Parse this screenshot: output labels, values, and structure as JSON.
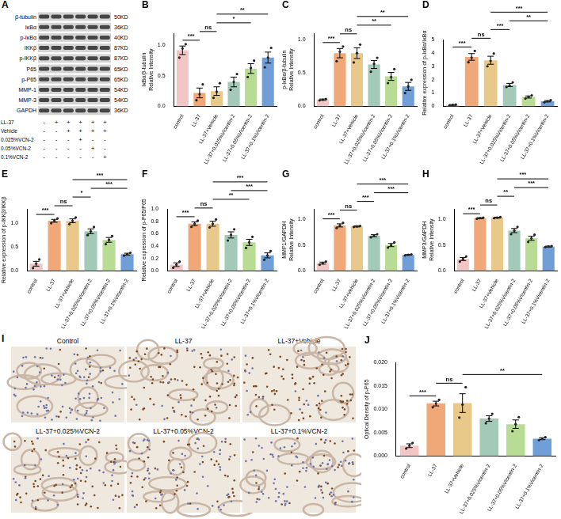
{
  "chart_data": [
    {
      "type": "bar",
      "panel": "B",
      "y_label": "IκBα/β-tubulin\nRelative Intensity",
      "categories": [
        "control",
        "LL-37",
        "LL-37+Vehicle",
        "LL-37+0.025%Vicentin-2",
        "LL-37+0.05%Vicentin-2",
        "LL-37+0.1%Vicentin-2"
      ],
      "values": [
        0.92,
        0.22,
        0.25,
        0.4,
        0.62,
        0.8
      ],
      "errors": [
        0.07,
        0.08,
        0.07,
        0.08,
        0.08,
        0.09
      ],
      "points": [
        [
          0.8,
          0.95,
          1.02
        ],
        [
          0.1,
          0.2,
          0.36
        ],
        [
          0.14,
          0.24,
          0.38
        ],
        [
          0.27,
          0.4,
          0.53
        ],
        [
          0.48,
          0.63,
          0.75
        ],
        [
          0.64,
          0.8,
          0.96
        ]
      ],
      "colors": [
        "#f3c6c6",
        "#f0a878",
        "#e8c98a",
        "#a3c9b8",
        "#b9dc94",
        "#6f9fd6"
      ],
      "ylim": [
        0,
        1.2
      ],
      "yticks": [
        {
          "value": 0,
          "label": "0.0"
        },
        {
          "value": 0.5,
          "label": "0.5"
        },
        {
          "value": 1,
          "label": "1.0"
        }
      ],
      "grid": false,
      "comparisons": [
        {
          "from": "control",
          "to": "LL-37",
          "label": "***"
        },
        {
          "from": "LL-37",
          "to": "LL-37+Vehicle",
          "label": "ns"
        },
        {
          "from": "LL-37+Vehicle",
          "to": "LL-37+0.05%Vicentin-2",
          "label": "*"
        },
        {
          "from": "LL-37+Vehicle",
          "to": "LL-37+0.1%Vicentin-2",
          "label": "**"
        }
      ]
    },
    {
      "type": "bar",
      "panel": "C",
      "y_label": "p-IκBα/β-tubulin\nRelative Intensity",
      "categories": [
        "control",
        "LL-37",
        "LL-37+Vehicle",
        "LL-37+0.025%Vicentin-2",
        "LL-37+0.05%Vicentin-2",
        "LL-37+0.1%Vicentin-2"
      ],
      "values": [
        0.1,
        0.8,
        0.8,
        0.63,
        0.45,
        0.3
      ],
      "errors": [
        0.01,
        0.07,
        0.08,
        0.06,
        0.06,
        0.06
      ],
      "points": [
        [
          0.09,
          0.1,
          0.11
        ],
        [
          0.68,
          0.82,
          0.9
        ],
        [
          0.66,
          0.8,
          0.93
        ],
        [
          0.52,
          0.64,
          0.73
        ],
        [
          0.35,
          0.44,
          0.56
        ],
        [
          0.2,
          0.3,
          0.4
        ]
      ],
      "colors": [
        "#f3c6c6",
        "#f0a878",
        "#e8c98a",
        "#a3c9b8",
        "#b9dc94",
        "#6f9fd6"
      ],
      "ylim": [
        0,
        1.1
      ],
      "yticks": [
        {
          "value": 0,
          "label": "0.0"
        },
        {
          "value": 0.5,
          "label": "0.5"
        },
        {
          "value": 1,
          "label": "1.0"
        }
      ],
      "grid": false,
      "comparisons": [
        {
          "from": "control",
          "to": "LL-37",
          "label": "***"
        },
        {
          "from": "LL-37",
          "to": "LL-37+Vehicle",
          "label": "ns"
        },
        {
          "from": "LL-37+Vehicle",
          "to": "LL-37+0.05%Vicentin-2",
          "label": "**"
        },
        {
          "from": "LL-37+Vehicle",
          "to": "LL-37+0.1%Vicentin-2",
          "label": "**"
        }
      ]
    },
    {
      "type": "bar",
      "panel": "D",
      "y_label": "Relative expression of p-IκBα/IκBα",
      "categories": [
        "control",
        "LL-37",
        "LL-37+Vehicle",
        "LL-37+0.025%Vicentin-2",
        "LL-37+0.05%Vicentin-2",
        "LL-37+0.1%Vicentin-2"
      ],
      "values": [
        0.1,
        3.7,
        3.45,
        1.6,
        0.7,
        0.38
      ],
      "errors": [
        0.03,
        0.25,
        0.3,
        0.12,
        0.08,
        0.05
      ],
      "points": [
        [
          0.07,
          0.1,
          0.13
        ],
        [
          3.3,
          3.65,
          4.15
        ],
        [
          3.0,
          3.4,
          3.95
        ],
        [
          1.45,
          1.55,
          1.8
        ],
        [
          0.58,
          0.7,
          0.82
        ],
        [
          0.3,
          0.38,
          0.46
        ]
      ],
      "colors": [
        "#f3c6c6",
        "#f0a878",
        "#e8c98a",
        "#a3c9b8",
        "#b9dc94",
        "#6f9fd6"
      ],
      "ylim": [
        0,
        5
      ],
      "yticks": [
        0,
        1,
        2,
        3,
        4,
        5
      ],
      "grid": false,
      "comparisons": [
        {
          "from": "control",
          "to": "LL-37",
          "label": "***"
        },
        {
          "from": "LL-37",
          "to": "LL-37+Vehicle",
          "label": "ns"
        },
        {
          "from": "LL-37+Vehicle",
          "to": "LL-37+0.025%Vicentin-2",
          "label": "***"
        },
        {
          "from": "LL-37+0.025%Vicentin-2",
          "to": "LL-37+0.1%Vicentin-2",
          "label": "**"
        },
        {
          "from": "LL-37+Vehicle",
          "to": "LL-37+0.1%Vicentin-2",
          "label": "***"
        }
      ]
    },
    {
      "type": "bar",
      "panel": "E",
      "y_label": "Relative expression of p-IKKβ/IKKβ",
      "categories": [
        "control",
        "LL-37",
        "LL-37+Vehicle",
        "LL-37+0.025%Vicentin-2",
        "LL-37+0.05%Vicentin-2",
        "LL-37+0.1%Vicentin-2"
      ],
      "values": [
        0.15,
        1.05,
        1.05,
        0.83,
        0.65,
        0.35
      ],
      "errors": [
        0.05,
        0.03,
        0.04,
        0.05,
        0.05,
        0.02
      ],
      "points": [
        [
          0.06,
          0.15,
          0.24
        ],
        [
          1.0,
          1.05,
          1.1
        ],
        [
          0.98,
          1.05,
          1.12
        ],
        [
          0.75,
          0.83,
          0.92
        ],
        [
          0.56,
          0.65,
          0.73
        ],
        [
          0.32,
          0.35,
          0.38
        ]
      ],
      "colors": [
        "#f3c6c6",
        "#f0a878",
        "#e8c98a",
        "#a3c9b8",
        "#b9dc94",
        "#6f9fd6"
      ],
      "ylim": [
        0,
        1.3
      ],
      "yticks": [
        {
          "value": 0,
          "label": "0.0"
        },
        {
          "value": 0.5,
          "label": "0.5"
        },
        {
          "value": 1,
          "label": "1.0"
        }
      ],
      "grid": false,
      "comparisons": [
        {
          "from": "control",
          "to": "LL-37",
          "label": "***"
        },
        {
          "from": "LL-37",
          "to": "LL-37+Vehicle",
          "label": "ns"
        },
        {
          "from": "LL-37+Vehicle",
          "to": "LL-37+0.025%Vicentin-2",
          "label": "*"
        },
        {
          "from": "LL-37+0.025%Vicentin-2",
          "to": "LL-37+0.1%Vicentin-2",
          "label": "***"
        },
        {
          "from": "LL-37+Vehicle",
          "to": "LL-37+0.1%Vicentin-2",
          "label": "***"
        }
      ]
    },
    {
      "type": "bar",
      "panel": "F",
      "y_label": "Relative expression of p-P65/P65",
      "categories": [
        "control",
        "LL-37",
        "LL-37+Vehicle",
        "LL-37+0.025%Vicentin-2",
        "LL-37+0.05%Vicentin-2",
        "LL-37+0.1%Vicentin-2"
      ],
      "values": [
        0.1,
        0.76,
        0.76,
        0.58,
        0.46,
        0.25
      ],
      "errors": [
        0.03,
        0.03,
        0.04,
        0.05,
        0.05,
        0.04
      ],
      "points": [
        [
          0.05,
          0.1,
          0.15
        ],
        [
          0.71,
          0.76,
          0.81
        ],
        [
          0.7,
          0.76,
          0.83
        ],
        [
          0.49,
          0.58,
          0.67
        ],
        [
          0.37,
          0.46,
          0.55
        ],
        [
          0.18,
          0.25,
          0.32
        ]
      ],
      "colors": [
        "#f3c6c6",
        "#f0a878",
        "#e8c98a",
        "#a3c9b8",
        "#b9dc94",
        "#6f9fd6"
      ],
      "ylim": [
        0,
        1.0
      ],
      "yticks": [
        {
          "value": 0,
          "label": "0.0"
        },
        {
          "value": 0.2,
          "label": "0.2"
        },
        {
          "value": 0.4,
          "label": "0.4"
        },
        {
          "value": 0.6,
          "label": "0.6"
        },
        {
          "value": 0.8,
          "label": "0.8"
        },
        {
          "value": 1,
          "label": "1.0"
        }
      ],
      "grid": false,
      "comparisons": [
        {
          "from": "control",
          "to": "LL-37",
          "label": "***"
        },
        {
          "from": "LL-37",
          "to": "LL-37+Vehicle",
          "label": "ns"
        },
        {
          "from": "LL-37+Vehicle",
          "to": "LL-37+0.05%Vicentin-2",
          "label": "**"
        },
        {
          "from": "LL-37+0.025%Vicentin-2",
          "to": "LL-37+0.1%Vicentin-2",
          "label": "***"
        },
        {
          "from": "LL-37+Vehicle",
          "to": "LL-37+0.1%Vicentin-2",
          "label": "***"
        }
      ]
    },
    {
      "type": "bar",
      "panel": "G",
      "y_label": "MMP1/GAPDH\nRelative Intensity",
      "categories": [
        "control",
        "LL-37",
        "LL-37+Vehicle",
        "LL-37+0.025%Vicentin-2",
        "LL-37+0.05%Vicentin-2",
        "LL-37+0.1%Vicentin-2"
      ],
      "values": [
        0.15,
        0.88,
        0.86,
        0.68,
        0.5,
        0.31
      ],
      "errors": [
        0.02,
        0.03,
        0.01,
        0.02,
        0.03,
        0.005
      ],
      "points": [
        [
          0.12,
          0.15,
          0.18
        ],
        [
          0.83,
          0.88,
          0.93
        ],
        [
          0.85,
          0.86,
          0.87
        ],
        [
          0.65,
          0.68,
          0.71
        ],
        [
          0.45,
          0.5,
          0.55
        ],
        [
          0.3,
          0.31,
          0.32
        ]
      ],
      "colors": [
        "#f3c6c6",
        "#f0a878",
        "#e8c98a",
        "#a3c9b8",
        "#b9dc94",
        "#6f9fd6"
      ],
      "ylim": [
        0,
        1.2
      ],
      "yticks": [
        {
          "value": 0,
          "label": "0.0"
        },
        {
          "value": 0.5,
          "label": "0.5"
        },
        {
          "value": 1,
          "label": "1.0"
        }
      ],
      "grid": false,
      "comparisons": [
        {
          "from": "control",
          "to": "LL-37",
          "label": "***"
        },
        {
          "from": "LL-37",
          "to": "LL-37+Vehicle",
          "label": "ns"
        },
        {
          "from": "LL-37+Vehicle",
          "to": "LL-37+0.025%Vicentin-2",
          "label": "***"
        },
        {
          "from": "LL-37+0.025%Vicentin-2",
          "to": "LL-37+0.1%Vicentin-2",
          "label": "***"
        },
        {
          "from": "LL-37+Vehicle",
          "to": "LL-37+0.1%Vicentin-2",
          "label": "***"
        }
      ]
    },
    {
      "type": "bar",
      "panel": "H",
      "y_label": "MMP3/GAPDH\nRelative Intensity",
      "categories": [
        "control",
        "LL-37",
        "LL-37+Vehicle",
        "LL-37+0.025%Vicentin-2",
        "LL-37+0.05%Vicentin-2",
        "LL-37+0.1%Vicentin-2"
      ],
      "values": [
        0.23,
        1.02,
        1.03,
        0.78,
        0.63,
        0.47
      ],
      "errors": [
        0.03,
        0.01,
        0.01,
        0.04,
        0.04,
        0.01
      ],
      "points": [
        [
          0.18,
          0.23,
          0.28
        ],
        [
          1.01,
          1.02,
          1.03
        ],
        [
          1.02,
          1.03,
          1.04
        ],
        [
          0.71,
          0.78,
          0.85
        ],
        [
          0.56,
          0.63,
          0.7
        ],
        [
          0.46,
          0.47,
          0.48
        ]
      ],
      "colors": [
        "#f3c6c6",
        "#f0a878",
        "#e8c98a",
        "#a3c9b8",
        "#b9dc94",
        "#6f9fd6"
      ],
      "ylim": [
        0,
        1.2
      ],
      "yticks": [
        {
          "value": 0,
          "label": "0.0"
        },
        {
          "value": 0.5,
          "label": "0.5"
        },
        {
          "value": 1,
          "label": "1.0"
        }
      ],
      "grid": false,
      "comparisons": [
        {
          "from": "control",
          "to": "LL-37",
          "label": "***"
        },
        {
          "from": "LL-37",
          "to": "LL-37+Vehicle",
          "label": "ns"
        },
        {
          "from": "LL-37+Vehicle",
          "to": "LL-37+0.025%Vicentin-2",
          "label": "**"
        },
        {
          "from": "LL-37+0.025%Vicentin-2",
          "to": "LL-37+0.1%Vicentin-2",
          "label": "***"
        },
        {
          "from": "LL-37+Vehicle",
          "to": "LL-37+0.1%Vicentin-2",
          "label": "***"
        }
      ]
    },
    {
      "type": "bar",
      "panel": "J",
      "y_label": "Optical Density of p-P65",
      "categories": [
        "control",
        "LL-37",
        "LL-37+Vehicle",
        "LL-37+0.025%Vicentin-2",
        "LL-37+0.05%Vicentin-2",
        "LL-37+0.1%Vicentin-2"
      ],
      "values": [
        0.0022,
        0.0112,
        0.0113,
        0.008,
        0.0068,
        0.0037
      ],
      "errors": [
        0.0004,
        0.0005,
        0.002,
        0.0006,
        0.0009,
        0.0002
      ],
      "points": [
        [
          0.0016,
          0.0022,
          0.0028
        ],
        [
          0.0104,
          0.0112,
          0.012
        ],
        [
          0.0082,
          0.011,
          0.0147
        ],
        [
          0.007,
          0.008,
          0.009
        ],
        [
          0.0053,
          0.0068,
          0.0083
        ],
        [
          0.0034,
          0.0037,
          0.004
        ]
      ],
      "colors": [
        "#f3c6c6",
        "#f0a878",
        "#e8c98a",
        "#a3c9b8",
        "#b9dc94",
        "#6f9fd6"
      ],
      "ylim": [
        0,
        0.02
      ],
      "yticks": [
        {
          "value": 0,
          "label": "0.000"
        },
        {
          "value": 0.005,
          "label": "0.005"
        },
        {
          "value": 0.01,
          "label": "0.010"
        },
        {
          "value": 0.015,
          "label": "0.015"
        },
        {
          "value": 0.02,
          "label": "0.020"
        }
      ],
      "grid": false,
      "comparisons": [
        {
          "from": "control",
          "to": "LL-37",
          "label": "***"
        },
        {
          "from": "LL-37",
          "to": "LL-37+Vehicle",
          "label": "ns"
        },
        {
          "from": "LL-37+Vehicle",
          "to": "LL-37+0.1%Vicentin-2",
          "label": "**"
        }
      ]
    }
  ],
  "blot": {
    "panel": "A",
    "rows": [
      {
        "label": "β-tubulin",
        "size": "50KD"
      },
      {
        "label": "IκBα",
        "size": "36KD"
      },
      {
        "label": "p-IκBα",
        "size": "40KD"
      },
      {
        "label": "IKKβ",
        "size": "87KD"
      },
      {
        "label": "p-IKKβ",
        "size": "87KD"
      },
      {
        "label": "P65",
        "size": "65KD"
      },
      {
        "label": "p-P65",
        "size": "65KD"
      },
      {
        "label": "MMP-1",
        "size": "54KD"
      },
      {
        "label": "MMP-3",
        "size": "54KD"
      },
      {
        "label": "GAPDH",
        "size": "36KD"
      }
    ],
    "conditions": [
      {
        "label": "LL-37",
        "marks": [
          "-",
          "+",
          "+",
          "+",
          "+",
          "+"
        ]
      },
      {
        "label": "Vehicle",
        "marks": [
          "-",
          "-",
          "+",
          "+",
          "+",
          "+"
        ]
      },
      {
        "label": "0.025%VCN-2",
        "marks": [
          "-",
          "-",
          "-",
          "+",
          "-",
          "-"
        ]
      },
      {
        "label": "0.05%VCN-2",
        "marks": [
          "-",
          "-",
          "-",
          "-",
          "+",
          "-"
        ]
      },
      {
        "label": "0.1%VCN-2",
        "marks": [
          "-",
          "-",
          "-",
          "-",
          "-",
          "+"
        ]
      }
    ]
  },
  "ihc": {
    "panel": "I",
    "images": [
      "Control",
      "LL-37",
      "LL-37+Vehicle",
      "LL-37+0.025%VCN-2",
      "LL-37+0.05%VCN-2",
      "LL-37+0.1%VCN-2"
    ]
  }
}
